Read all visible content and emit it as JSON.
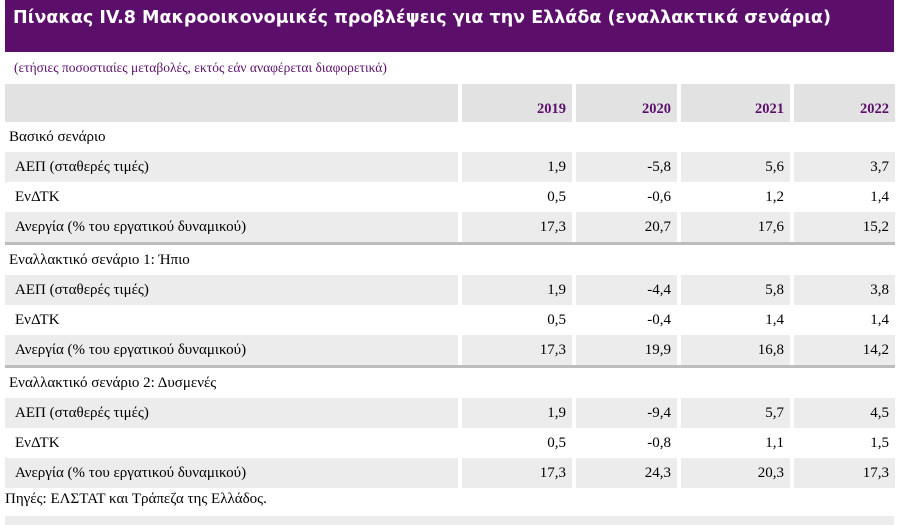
{
  "title": "Πίνακας IV.8 Μακροοικονομικές προβλέψεις για την Ελλάδα (εναλλακτικά σενάρια)",
  "subtitle": "(ετήσιες ποσοστιαίες μεταβολές, εκτός εάν αναφέρεται διαφορετικά)",
  "years": [
    "2019",
    "2020",
    "2021",
    "2022"
  ],
  "sections": [
    {
      "name": "Βασικό σενάριο",
      "rows": [
        {
          "label": "ΑΕΠ (σταθερές τιμές)",
          "values": [
            "1,9",
            "-5,8",
            "5,6",
            "3,7"
          ]
        },
        {
          "label": "ΕνΔΤΚ",
          "values": [
            "0,5",
            "-0,6",
            "1,2",
            "1,4"
          ]
        },
        {
          "label": "Ανεργία (% του εργατικού δυναμικού)",
          "values": [
            "17,3",
            "20,7",
            "17,6",
            "15,2"
          ]
        }
      ]
    },
    {
      "name": "Εναλλακτικό σενάριο 1: Ήπιο",
      "rows": [
        {
          "label": "ΑΕΠ (σταθερές τιμές)",
          "values": [
            "1,9",
            "-4,4",
            "5,8",
            "3,8"
          ]
        },
        {
          "label": "ΕνΔΤΚ",
          "values": [
            "0,5",
            "-0,4",
            "1,4",
            "1,4"
          ]
        },
        {
          "label": "Ανεργία (% του εργατικού δυναμικού)",
          "values": [
            "17,3",
            "19,9",
            "16,8",
            "14,2"
          ]
        }
      ]
    },
    {
      "name": "Εναλλακτικό σενάριο 2: Δυσμενές",
      "rows": [
        {
          "label": "ΑΕΠ (σταθερές τιμές)",
          "values": [
            "1,9",
            "-9,4",
            "5,7",
            "4,5"
          ]
        },
        {
          "label": "ΕνΔΤΚ",
          "values": [
            "0,5",
            "-0,8",
            "1,1",
            "1,5"
          ]
        },
        {
          "label": "Ανεργία (% του εργατικού δυναμικού)",
          "values": [
            "17,3",
            "24,3",
            "20,3",
            "17,3"
          ]
        }
      ]
    }
  ],
  "source": "Πηγές: ΕΛΣΤΑΤ και Τράπεζα της Ελλάδος.",
  "colors": {
    "accent": "#5b0f6b",
    "header_bg": "#e2e2e2",
    "row_shade": "#ececec",
    "divider": "#bdbdbd"
  }
}
